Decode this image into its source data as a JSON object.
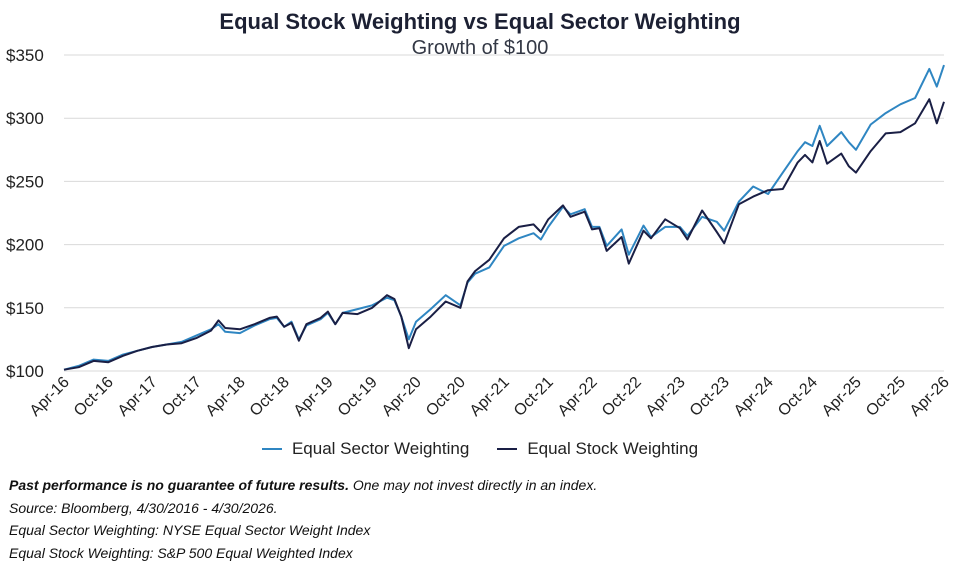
{
  "title": "Equal Stock Weighting vs Equal Sector Weighting",
  "subtitle": "Growth of $100",
  "legend": {
    "sector_label": "Equal Sector Weighting",
    "stock_label": "Equal Stock Weighting"
  },
  "footnotes": {
    "disclaimer_bold": "Past performance is no guarantee of future results.",
    "disclaimer_rest": " One may not invest directly in an index.",
    "source": "Source: Bloomberg, 4/30/2016 - 4/30/2026.",
    "sector_def": "Equal Sector Weighting: NYSE Equal Sector Weight Index",
    "stock_def": "Equal Stock Weighting: S&P 500 Equal Weighted Index"
  },
  "colors": {
    "sector": "#2f86c2",
    "stock": "#1a1f45",
    "grid": "#d9d9d9",
    "title": "#1c2033"
  },
  "chart_data": {
    "type": "line",
    "title": "Equal Stock Weighting vs Equal Sector Weighting",
    "subtitle": "Growth of $100",
    "xlabel": "",
    "ylabel": "",
    "ylim": [
      100,
      350
    ],
    "yticks": [
      100,
      150,
      200,
      250,
      300,
      350
    ],
    "ytick_labels": [
      "$100",
      "$150",
      "$200",
      "$250",
      "$300",
      "$350"
    ],
    "xlim": [
      "2016-04-30",
      "2026-04-30"
    ],
    "xtick_labels": [
      "Apr-16",
      "Oct-16",
      "Apr-17",
      "Oct-17",
      "Apr-18",
      "Oct-18",
      "Apr-19",
      "Oct-19",
      "Apr-20",
      "Oct-20",
      "Apr-21",
      "Oct-21",
      "Apr-22",
      "Oct-22",
      "Apr-23",
      "Oct-23",
      "Apr-24",
      "Oct-24",
      "Apr-25",
      "Oct-25",
      "Apr-26"
    ],
    "grid": true,
    "legend_position": "bottom",
    "series": [
      {
        "name": "Equal Sector Weighting",
        "points": [
          [
            "2016-04-30",
            101
          ],
          [
            "2016-06-30",
            104
          ],
          [
            "2016-08-31",
            109
          ],
          [
            "2016-10-31",
            108
          ],
          [
            "2016-12-31",
            113
          ],
          [
            "2017-02-28",
            116
          ],
          [
            "2017-04-30",
            119
          ],
          [
            "2017-06-30",
            121
          ],
          [
            "2017-08-31",
            123
          ],
          [
            "2017-10-31",
            128
          ],
          [
            "2017-12-31",
            133
          ],
          [
            "2018-01-31",
            137
          ],
          [
            "2018-02-28",
            131
          ],
          [
            "2018-04-30",
            130
          ],
          [
            "2018-06-30",
            136
          ],
          [
            "2018-08-31",
            141
          ],
          [
            "2018-09-30",
            142
          ],
          [
            "2018-10-31",
            135
          ],
          [
            "2018-11-30",
            139
          ],
          [
            "2018-12-31",
            125
          ],
          [
            "2019-01-31",
            136
          ],
          [
            "2019-03-31",
            141
          ],
          [
            "2019-04-30",
            146
          ],
          [
            "2019-05-31",
            137
          ],
          [
            "2019-06-30",
            146
          ],
          [
            "2019-08-31",
            149
          ],
          [
            "2019-10-31",
            152
          ],
          [
            "2019-12-31",
            158
          ],
          [
            "2020-01-31",
            156
          ],
          [
            "2020-02-29",
            143
          ],
          [
            "2020-03-31",
            125
          ],
          [
            "2020-04-30",
            139
          ],
          [
            "2020-06-30",
            149
          ],
          [
            "2020-08-31",
            160
          ],
          [
            "2020-10-31",
            152
          ],
          [
            "2020-11-30",
            170
          ],
          [
            "2020-12-31",
            177
          ],
          [
            "2021-02-28",
            182
          ],
          [
            "2021-04-30",
            199
          ],
          [
            "2021-06-30",
            205
          ],
          [
            "2021-08-31",
            209
          ],
          [
            "2021-09-30",
            204
          ],
          [
            "2021-10-31",
            214
          ],
          [
            "2021-12-31",
            230
          ],
          [
            "2022-01-31",
            224
          ],
          [
            "2022-03-31",
            228
          ],
          [
            "2022-04-30",
            214
          ],
          [
            "2022-05-31",
            214
          ],
          [
            "2022-06-30",
            199
          ],
          [
            "2022-08-31",
            212
          ],
          [
            "2022-09-30",
            192
          ],
          [
            "2022-11-30",
            215
          ],
          [
            "2022-12-31",
            206
          ],
          [
            "2023-02-28",
            214
          ],
          [
            "2023-04-30",
            214
          ],
          [
            "2023-05-31",
            207
          ],
          [
            "2023-07-31",
            222
          ],
          [
            "2023-09-30",
            218
          ],
          [
            "2023-10-31",
            211
          ],
          [
            "2023-12-31",
            234
          ],
          [
            "2024-02-28",
            246
          ],
          [
            "2024-04-30",
            240
          ],
          [
            "2024-06-30",
            257
          ],
          [
            "2024-08-31",
            274
          ],
          [
            "2024-09-30",
            281
          ],
          [
            "2024-10-31",
            278
          ],
          [
            "2024-11-30",
            294
          ],
          [
            "2024-12-31",
            278
          ],
          [
            "2025-02-28",
            289
          ],
          [
            "2025-03-31",
            281
          ],
          [
            "2025-04-30",
            275
          ],
          [
            "2025-06-30",
            295
          ],
          [
            "2025-08-31",
            304
          ],
          [
            "2025-10-31",
            311
          ],
          [
            "2025-12-31",
            316
          ],
          [
            "2026-02-28",
            339
          ],
          [
            "2026-03-31",
            325
          ],
          [
            "2026-04-30",
            342
          ]
        ]
      },
      {
        "name": "Equal Stock Weighting",
        "points": [
          [
            "2016-04-30",
            101
          ],
          [
            "2016-06-30",
            103
          ],
          [
            "2016-08-31",
            108
          ],
          [
            "2016-10-31",
            107
          ],
          [
            "2016-12-31",
            112
          ],
          [
            "2017-02-28",
            116
          ],
          [
            "2017-04-30",
            119
          ],
          [
            "2017-06-30",
            121
          ],
          [
            "2017-08-31",
            122
          ],
          [
            "2017-10-31",
            126
          ],
          [
            "2017-12-31",
            132
          ],
          [
            "2018-01-31",
            140
          ],
          [
            "2018-02-28",
            134
          ],
          [
            "2018-04-30",
            133
          ],
          [
            "2018-06-30",
            137
          ],
          [
            "2018-08-31",
            142
          ],
          [
            "2018-09-30",
            143
          ],
          [
            "2018-10-31",
            135
          ],
          [
            "2018-11-30",
            138
          ],
          [
            "2018-12-31",
            124
          ],
          [
            "2019-01-31",
            137
          ],
          [
            "2019-03-31",
            142
          ],
          [
            "2019-04-30",
            147
          ],
          [
            "2019-05-31",
            137
          ],
          [
            "2019-06-30",
            146
          ],
          [
            "2019-08-31",
            145
          ],
          [
            "2019-10-31",
            150
          ],
          [
            "2019-12-31",
            160
          ],
          [
            "2020-01-31",
            157
          ],
          [
            "2020-02-29",
            143
          ],
          [
            "2020-03-31",
            118
          ],
          [
            "2020-04-30",
            133
          ],
          [
            "2020-06-30",
            143
          ],
          [
            "2020-08-31",
            155
          ],
          [
            "2020-10-31",
            150
          ],
          [
            "2020-11-30",
            171
          ],
          [
            "2020-12-31",
            179
          ],
          [
            "2021-02-28",
            188
          ],
          [
            "2021-04-30",
            205
          ],
          [
            "2021-06-30",
            214
          ],
          [
            "2021-08-31",
            216
          ],
          [
            "2021-09-30",
            210
          ],
          [
            "2021-10-31",
            220
          ],
          [
            "2021-12-31",
            231
          ],
          [
            "2022-01-31",
            222
          ],
          [
            "2022-03-31",
            226
          ],
          [
            "2022-04-30",
            212
          ],
          [
            "2022-05-31",
            213
          ],
          [
            "2022-06-30",
            195
          ],
          [
            "2022-08-31",
            206
          ],
          [
            "2022-09-30",
            185
          ],
          [
            "2022-11-30",
            211
          ],
          [
            "2022-12-31",
            205
          ],
          [
            "2023-02-28",
            220
          ],
          [
            "2023-04-30",
            213
          ],
          [
            "2023-05-31",
            204
          ],
          [
            "2023-07-31",
            227
          ],
          [
            "2023-09-30",
            210
          ],
          [
            "2023-10-31",
            201
          ],
          [
            "2023-12-31",
            232
          ],
          [
            "2024-02-28",
            238
          ],
          [
            "2024-04-30",
            243
          ],
          [
            "2024-06-30",
            244
          ],
          [
            "2024-08-31",
            265
          ],
          [
            "2024-09-30",
            271
          ],
          [
            "2024-10-31",
            265
          ],
          [
            "2024-11-30",
            282
          ],
          [
            "2024-12-31",
            264
          ],
          [
            "2025-02-28",
            272
          ],
          [
            "2025-03-31",
            262
          ],
          [
            "2025-04-30",
            257
          ],
          [
            "2025-06-30",
            274
          ],
          [
            "2025-08-31",
            288
          ],
          [
            "2025-10-31",
            289
          ],
          [
            "2025-12-31",
            296
          ],
          [
            "2026-02-28",
            315
          ],
          [
            "2026-03-31",
            296
          ],
          [
            "2026-04-30",
            313
          ]
        ]
      }
    ]
  }
}
